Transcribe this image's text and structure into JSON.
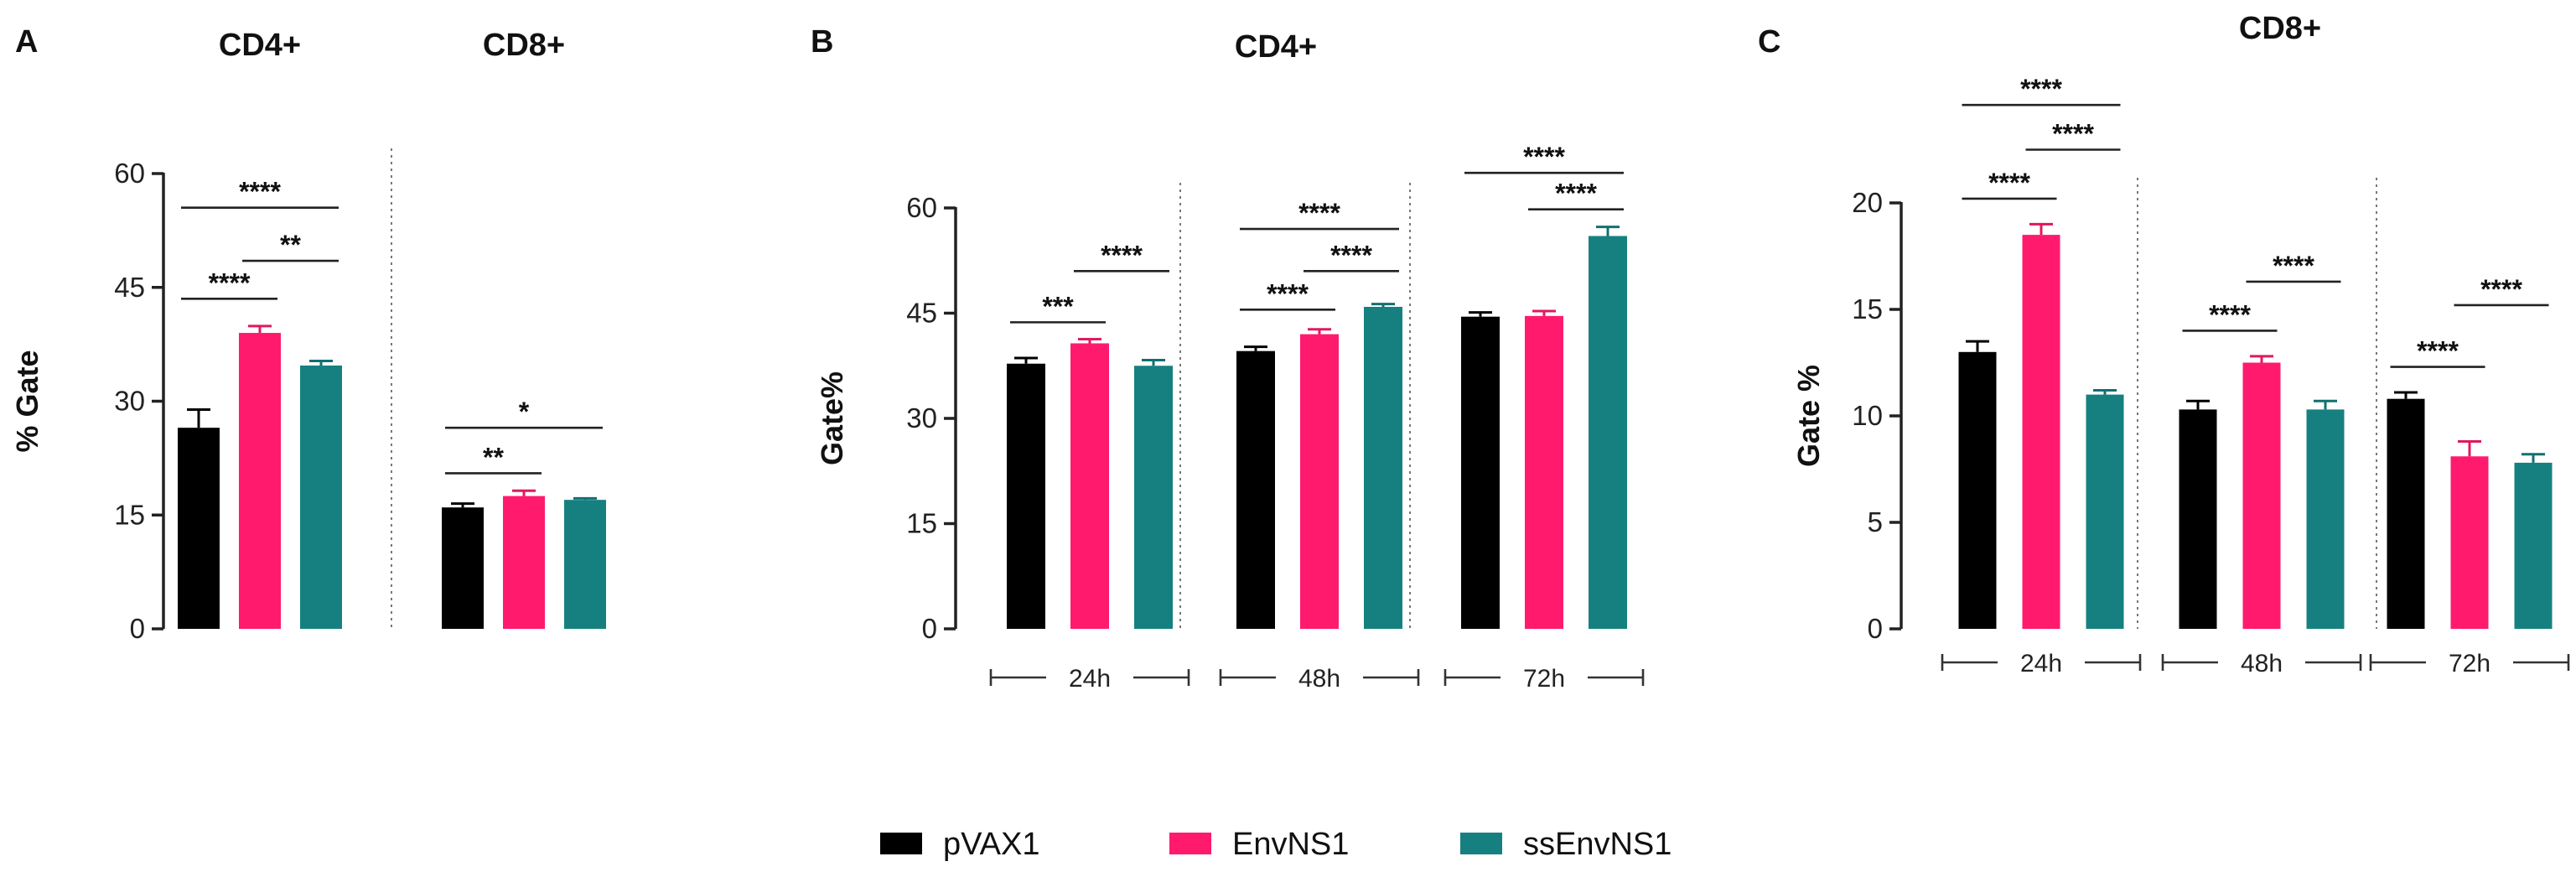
{
  "legend": [
    {
      "label": "pVAX1",
      "color": "#000000"
    },
    {
      "label": "EnvNS1",
      "color": "#FF1A6E"
    },
    {
      "label": "ssEnvNS1",
      "color": "#168080"
    }
  ],
  "chart_data": [
    {
      "panel": "A",
      "type": "bar",
      "ylabel": "% Gate",
      "ylim": [
        0,
        60
      ],
      "yticks": [
        0,
        15,
        30,
        45,
        60
      ],
      "series_names": [
        "pVAX1",
        "EnvNS1",
        "ssEnvNS1"
      ],
      "groups": [
        {
          "title": "CD4+",
          "sublabel": "",
          "values": [
            26.5,
            39.0,
            34.7
          ],
          "errors": [
            2.4,
            0.9,
            0.6
          ]
        },
        {
          "title": "CD8+",
          "sublabel": "",
          "values": [
            16.0,
            17.5,
            17.0
          ],
          "errors": [
            0.5,
            0.7,
            0.2
          ]
        }
      ],
      "significance": [
        {
          "group": 0,
          "from": 0,
          "to": 1,
          "y": 43.5,
          "label": "****"
        },
        {
          "group": 0,
          "from": 1,
          "to": 2,
          "y": 48.5,
          "label": "**"
        },
        {
          "group": 0,
          "from": 0,
          "to": 2,
          "y": 55.5,
          "label": "****"
        },
        {
          "group": 1,
          "from": 0,
          "to": 1,
          "y": 20.5,
          "label": "**"
        },
        {
          "group": 1,
          "from": 0,
          "to": 2,
          "y": 26.5,
          "label": "*"
        }
      ]
    },
    {
      "panel": "B",
      "type": "bar",
      "title": "CD4+",
      "ylabel": "Gate%",
      "ylim": [
        0,
        60
      ],
      "yticks": [
        0,
        15,
        30,
        45,
        60
      ],
      "series_names": [
        "pVAX1",
        "EnvNS1",
        "ssEnvNS1"
      ],
      "groups": [
        {
          "title": "",
          "sublabel": "24h",
          "values": [
            37.8,
            40.7,
            37.5
          ],
          "errors": [
            0.8,
            0.6,
            0.8
          ]
        },
        {
          "title": "",
          "sublabel": "48h",
          "values": [
            39.6,
            42.0,
            45.9
          ],
          "errors": [
            0.6,
            0.7,
            0.4
          ]
        },
        {
          "title": "",
          "sublabel": "72h",
          "values": [
            44.5,
            44.6,
            56.0
          ],
          "errors": [
            0.6,
            0.7,
            1.3
          ]
        }
      ],
      "significance": [
        {
          "group": 0,
          "from": 0,
          "to": 1,
          "y": 43.7,
          "label": "***"
        },
        {
          "group": 0,
          "from": 1,
          "to": 2,
          "y": 51.0,
          "label": "****"
        },
        {
          "group": 1,
          "from": 0,
          "to": 1,
          "y": 45.5,
          "label": "****"
        },
        {
          "group": 1,
          "from": 1,
          "to": 2,
          "y": 51.0,
          "label": "****"
        },
        {
          "group": 1,
          "from": 0,
          "to": 2,
          "y": 57.0,
          "label": "****"
        },
        {
          "group": 2,
          "from": 1,
          "to": 2,
          "y": 59.8,
          "label": "****"
        },
        {
          "group": 2,
          "from": 0,
          "to": 2,
          "y": 65.0,
          "label": "****"
        }
      ]
    },
    {
      "panel": "C",
      "type": "bar",
      "title": "CD8+",
      "ylabel": "Gate %",
      "ylim": [
        0,
        20
      ],
      "yticks": [
        0,
        5,
        10,
        15,
        20
      ],
      "series_names": [
        "pVAX1",
        "EnvNS1",
        "ssEnvNS1"
      ],
      "groups": [
        {
          "title": "",
          "sublabel": "24h",
          "values": [
            13.0,
            18.5,
            11.0
          ],
          "errors": [
            0.5,
            0.5,
            0.2
          ]
        },
        {
          "title": "",
          "sublabel": "48h",
          "values": [
            10.3,
            12.5,
            10.3
          ],
          "errors": [
            0.4,
            0.3,
            0.4
          ]
        },
        {
          "title": "",
          "sublabel": "72h",
          "values": [
            10.8,
            8.1,
            7.8
          ],
          "errors": [
            0.3,
            0.7,
            0.4
          ]
        }
      ],
      "significance": [
        {
          "group": 0,
          "from": 0,
          "to": 1,
          "y": 20.2,
          "label": "****"
        },
        {
          "group": 0,
          "from": 1,
          "to": 2,
          "y": 22.5,
          "label": "****"
        },
        {
          "group": 0,
          "from": 0,
          "to": 2,
          "y": 24.6,
          "label": "****"
        },
        {
          "group": 1,
          "from": 0,
          "to": 1,
          "y": 14.0,
          "label": "****"
        },
        {
          "group": 1,
          "from": 1,
          "to": 2,
          "y": 16.3,
          "label": "****"
        },
        {
          "group": 2,
          "from": 0,
          "to": 1,
          "y": 12.3,
          "label": "****"
        },
        {
          "group": 2,
          "from": 1,
          "to": 2,
          "y": 15.2,
          "label": "****"
        }
      ]
    }
  ]
}
